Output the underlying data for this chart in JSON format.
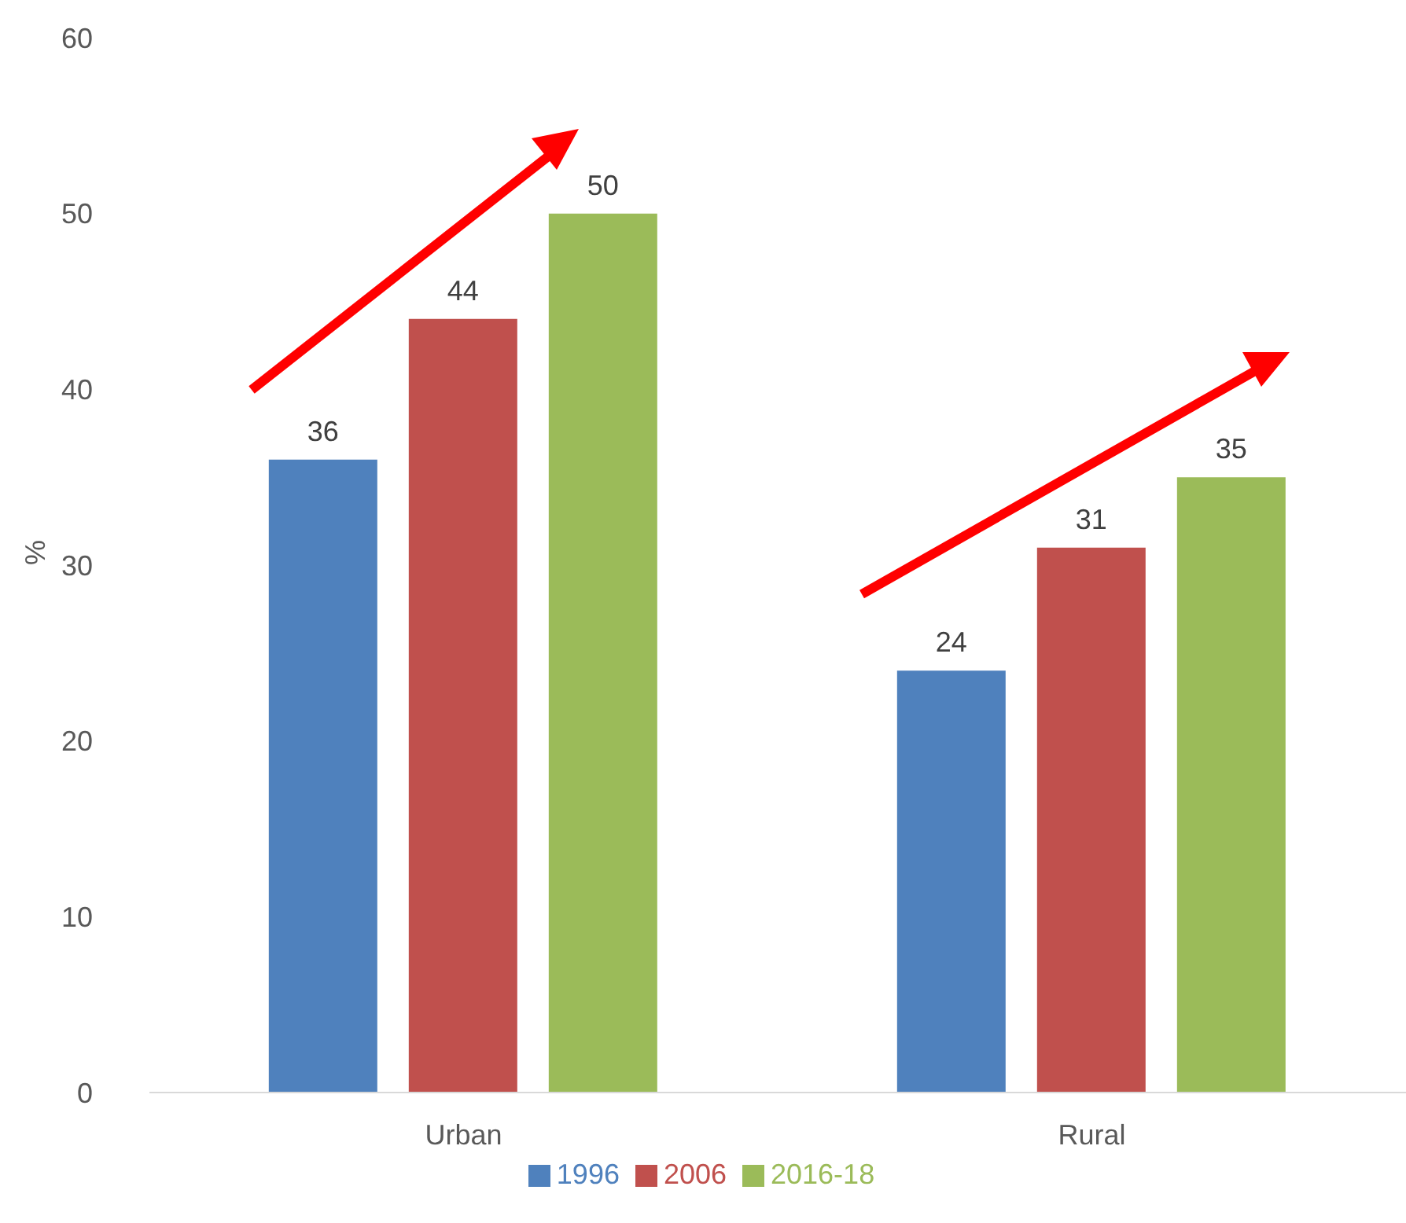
{
  "chart_data": {
    "type": "bar",
    "ylabel": "%",
    "categories": [
      "Urban",
      "Rural"
    ],
    "series": [
      {
        "name": "1996",
        "color": "#4f81bd",
        "values": [
          36,
          24
        ]
      },
      {
        "name": "2006",
        "color": "#c0504d",
        "values": [
          44,
          31
        ]
      },
      {
        "name": "2016-18",
        "color": "#9bbb59",
        "values": [
          50,
          35
        ]
      }
    ],
    "ylim": [
      0,
      60
    ],
    "yticks": [
      0,
      10,
      20,
      30,
      40,
      50,
      60
    ],
    "data_labels": true,
    "legend": "bottom"
  }
}
